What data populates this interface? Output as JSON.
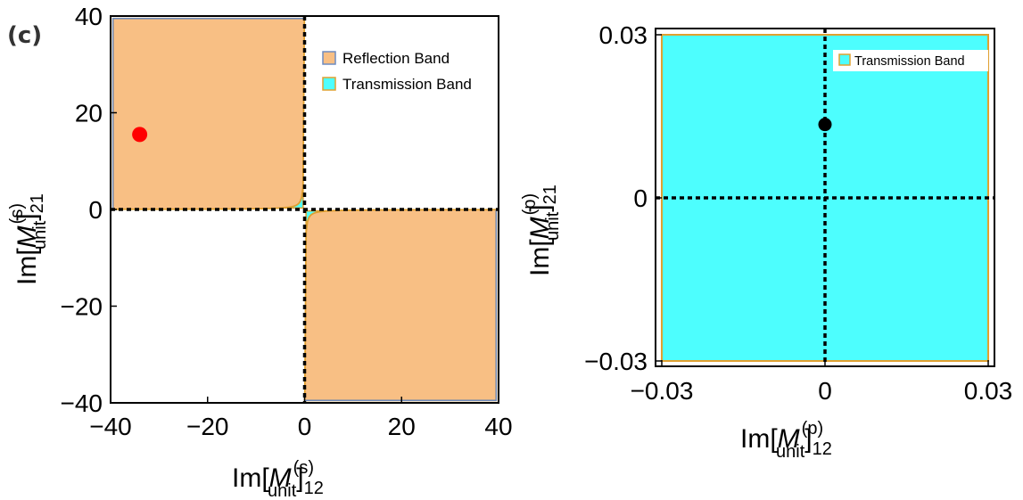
{
  "chart_data": [
    {
      "type": "region",
      "panel_label": "(c)",
      "xlim": [
        -40,
        40
      ],
      "ylim": [
        -40,
        40
      ],
      "xticks": [
        -40,
        -20,
        0,
        20,
        40
      ],
      "yticks": [
        -40,
        -20,
        0,
        20,
        40
      ],
      "xtick_labels": [
        "−40",
        "−20",
        "0",
        "20",
        "40"
      ],
      "ytick_labels": [
        "−40",
        "−20",
        "0",
        "20",
        "40"
      ],
      "xlabel": {
        "prefix": "Im[",
        "symbol": "M",
        "sup": "(s)",
        "sub": "unit",
        "suffix": "]",
        "index": "12"
      },
      "ylabel": {
        "prefix": "Im[",
        "symbol": "M",
        "sup": "(s)",
        "sub": "unit",
        "suffix": "]",
        "index": "21"
      },
      "legend": [
        {
          "label": "Reflection Band",
          "fill": "#F8BF84",
          "stroke": "#6E8CC0"
        },
        {
          "label": "Transmission Band",
          "fill": "#4DFEFE",
          "stroke": "#E0A030"
        }
      ],
      "regions": {
        "reflection": "Quadrant II and IV areas beyond the boundary curve y = k / x",
        "transmission": "band between the boundary curve and the axes in quadrants II and IV"
      },
      "boundary_k": -1.5,
      "point": {
        "x": -34,
        "y": 15.5,
        "color": "#FF0000"
      },
      "dashed_lines": {
        "x": 0,
        "y": 0
      }
    },
    {
      "type": "region",
      "xlim": [
        -0.03,
        0.03
      ],
      "ylim": [
        -0.03,
        0.03
      ],
      "xticks": [
        -0.03,
        0,
        0.03
      ],
      "yticks": [
        -0.03,
        0,
        0.03
      ],
      "xtick_labels": [
        "−0.03",
        "0",
        "0.03"
      ],
      "ytick_labels": [
        "−0.03",
        "0",
        "0.03"
      ],
      "xlabel": {
        "prefix": "Im[",
        "symbol": "M",
        "sup": "(p)",
        "sub": "unit",
        "suffix": "]",
        "index": "12"
      },
      "ylabel": {
        "prefix": "Im[",
        "symbol": "M",
        "sup": "(p)",
        "sub": "unit",
        "suffix": "]",
        "index": "21"
      },
      "legend": [
        {
          "label": "Transmission Band",
          "fill": "#4DFEFE",
          "stroke": "#E0A030"
        }
      ],
      "region_extent": [
        -0.03,
        0.03
      ],
      "point": {
        "x": 0,
        "y": 0.0135,
        "color": "#000000"
      },
      "dashed_lines": {
        "x": 0,
        "y": 0
      }
    }
  ],
  "colors": {
    "reflection_fill": "#F8BF84",
    "transmission_fill": "#4DFEFE",
    "band_edge": "#E0A030",
    "reflection_edge": "#6E8CC0"
  }
}
